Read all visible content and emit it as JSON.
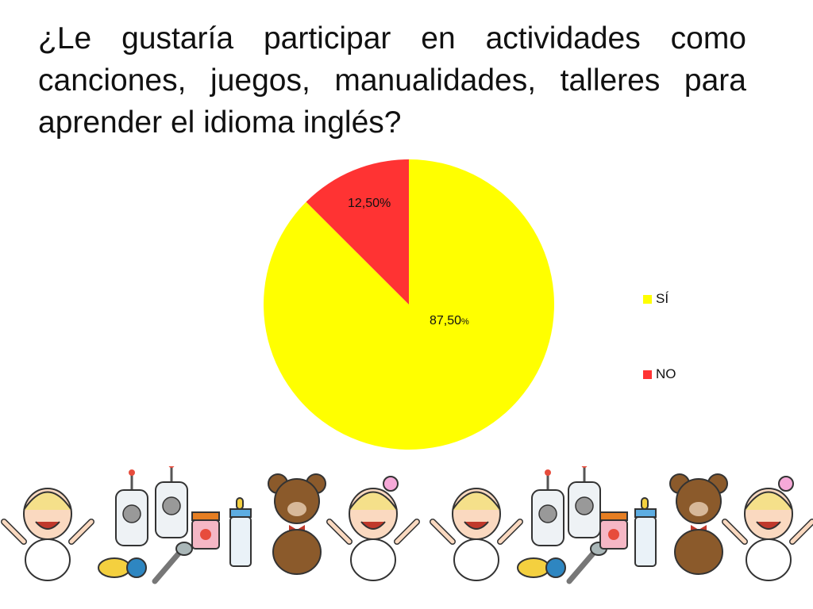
{
  "slide": {
    "title": "¿Le gustaría participar en actividades como canciones, juegos, manualidades, talleres para aprender el idioma inglés?"
  },
  "chart_data": {
    "type": "pie",
    "title": "",
    "slices": [
      {
        "label": "SÍ",
        "value": 87.5,
        "data_label": "87,50",
        "data_label_unit": "%",
        "color": "#FFFF00"
      },
      {
        "label": "NO",
        "value": 12.5,
        "data_label": "12,50%",
        "color": "#FF3333"
      }
    ],
    "legend_position": "right"
  },
  "decoration": {
    "border_icons": [
      "baby-icon",
      "baby-monitor-icon",
      "pacifier-icon",
      "spoon-icon",
      "jar-icon",
      "bottle-icon",
      "teddy-bear-icon",
      "baby-girl-icon"
    ]
  }
}
